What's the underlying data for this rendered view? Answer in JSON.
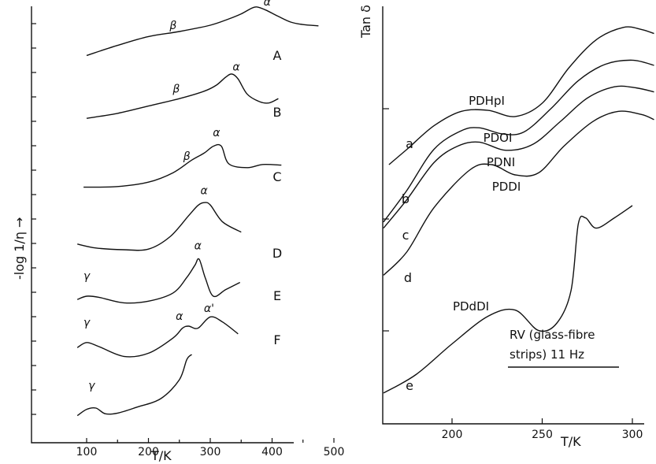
{
  "chart_data": [
    {
      "type": "line",
      "panel": "left",
      "xlabel": "T/K",
      "ylabel": "-log 1/η →",
      "xticks": [
        100,
        200,
        300,
        400,
        500
      ],
      "xlim": [
        80,
        530
      ],
      "series": [
        {
          "name": "A",
          "points": [
            [
              100,
              0.78
            ],
            [
              150,
              0.62
            ],
            [
              200,
              0.48
            ],
            [
              250,
              0.4
            ],
            [
              300,
              0.3
            ],
            [
              330,
              0.2
            ],
            [
              350,
              0.12
            ],
            [
              365,
              0.04
            ],
            [
              375,
              0.01
            ],
            [
              390,
              0.06
            ],
            [
              410,
              0.16
            ],
            [
              430,
              0.25
            ],
            [
              450,
              0.29
            ],
            [
              475,
              0.31
            ]
          ],
          "peak_labels": [
            {
              "text": "β",
              "x": 240,
              "y": 0.36
            },
            {
              "text": "α",
              "x": 392,
              "y": -0.01
            }
          ]
        },
        {
          "name": "B",
          "points": [
            [
              100,
              0.72
            ],
            [
              150,
              0.64
            ],
            [
              200,
              0.52
            ],
            [
              250,
              0.4
            ],
            [
              290,
              0.28
            ],
            [
              310,
              0.18
            ],
            [
              325,
              0.05
            ],
            [
              335,
              0.0
            ],
            [
              345,
              0.08
            ],
            [
              360,
              0.33
            ],
            [
              380,
              0.45
            ],
            [
              395,
              0.47
            ],
            [
              410,
              0.4
            ]
          ],
          "peak_labels": [
            {
              "text": "β",
              "x": 245,
              "y": 0.3
            },
            {
              "text": "α",
              "x": 342,
              "y": -0.06
            }
          ]
        },
        {
          "name": "C",
          "points": [
            [
              95,
              0.87
            ],
            [
              150,
              0.86
            ],
            [
              200,
              0.79
            ],
            [
              240,
              0.64
            ],
            [
              270,
              0.44
            ],
            [
              290,
              0.33
            ],
            [
              305,
              0.22
            ],
            [
              318,
              0.22
            ],
            [
              330,
              0.5
            ],
            [
              360,
              0.56
            ],
            [
              385,
              0.51
            ],
            [
              415,
              0.52
            ]
          ],
          "peak_labels": [
            {
              "text": "β",
              "x": 262,
              "y": 0.44
            },
            {
              "text": "α",
              "x": 310,
              "y": 0.06
            }
          ]
        },
        {
          "name": "D",
          "points": [
            [
              85,
              0.83
            ],
            [
              115,
              0.9
            ],
            [
              160,
              0.93
            ],
            [
              200,
              0.92
            ],
            [
              235,
              0.7
            ],
            [
              265,
              0.33
            ],
            [
              280,
              0.15
            ],
            [
              290,
              0.1
            ],
            [
              300,
              0.14
            ],
            [
              320,
              0.44
            ],
            [
              350,
              0.62
            ]
          ],
          "peak_labels": [
            {
              "text": "α",
              "x": 290,
              "y": -0.05
            }
          ]
        },
        {
          "name": "E",
          "points": [
            [
              85,
              0.86
            ],
            [
              100,
              0.8
            ],
            [
              120,
              0.82
            ],
            [
              160,
              0.92
            ],
            [
              200,
              0.89
            ],
            [
              240,
              0.74
            ],
            [
              262,
              0.46
            ],
            [
              275,
              0.24
            ],
            [
              282,
              0.13
            ],
            [
              292,
              0.47
            ],
            [
              305,
              0.8
            ],
            [
              325,
              0.68
            ],
            [
              348,
              0.55
            ]
          ],
          "peak_labels": [
            {
              "text": "γ",
              "x": 100,
              "y": 0.5
            },
            {
              "text": "α",
              "x": 280,
              "y": -0.05
            }
          ]
        },
        {
          "name": "F",
          "points": [
            [
              85,
              0.82
            ],
            [
              100,
              0.72
            ],
            [
              120,
              0.8
            ],
            [
              160,
              0.99
            ],
            [
              200,
              0.93
            ],
            [
              240,
              0.63
            ],
            [
              255,
              0.44
            ],
            [
              265,
              0.4
            ],
            [
              280,
              0.44
            ],
            [
              300,
              0.22
            ],
            [
              320,
              0.32
            ],
            [
              345,
              0.55
            ]
          ],
          "peak_labels": [
            {
              "text": "γ",
              "x": 100,
              "y": 0.4
            },
            {
              "text": "α",
              "x": 250,
              "y": 0.28
            },
            {
              "text": "α'",
              "x": 298,
              "y": 0.12
            }
          ]
        },
        {
          "name": "",
          "points": [
            [
              85,
              0.97
            ],
            [
              100,
              0.87
            ],
            [
              115,
              0.85
            ],
            [
              130,
              0.94
            ],
            [
              150,
              0.93
            ],
            [
              180,
              0.84
            ],
            [
              220,
              0.7
            ],
            [
              250,
              0.4
            ],
            [
              262,
              0.08
            ],
            [
              270,
              0.0
            ]
          ],
          "peak_labels": [
            {
              "text": "γ",
              "x": 108,
              "y": 0.55
            }
          ]
        }
      ]
    },
    {
      "type": "line",
      "panel": "right",
      "xlabel": "T/K",
      "ylabel": "Tan δ",
      "xticks": [
        200,
        250,
        300
      ],
      "xlim": [
        160,
        312
      ],
      "series": [
        {
          "name": "PDHpI",
          "curve_label": "a",
          "points": [
            [
              165,
              0.8
            ],
            [
              175,
              0.65
            ],
            [
              190,
              0.42
            ],
            [
              205,
              0.28
            ],
            [
              220,
              0.27
            ],
            [
              235,
              0.33
            ],
            [
              250,
              0.2
            ],
            [
              265,
              -0.15
            ],
            [
              280,
              -0.42
            ],
            [
              295,
              -0.54
            ],
            [
              305,
              -0.52
            ],
            [
              312,
              -0.48
            ]
          ]
        },
        {
          "name": "PDOI",
          "curve_label": "b",
          "points": [
            [
              162,
              1.36
            ],
            [
              175,
              1.05
            ],
            [
              190,
              0.65
            ],
            [
              205,
              0.47
            ],
            [
              215,
              0.44
            ],
            [
              228,
              0.5
            ],
            [
              240,
              0.48
            ],
            [
              255,
              0.25
            ],
            [
              270,
              -0.02
            ],
            [
              285,
              -0.18
            ],
            [
              300,
              -0.22
            ],
            [
              312,
              -0.17
            ]
          ]
        },
        {
          "name": "PDNI",
          "curve_label": "c",
          "points": [
            [
              162,
              1.42
            ],
            [
              175,
              1.14
            ],
            [
              190,
              0.78
            ],
            [
              203,
              0.62
            ],
            [
              215,
              0.58
            ],
            [
              230,
              0.66
            ],
            [
              245,
              0.6
            ],
            [
              260,
              0.38
            ],
            [
              275,
              0.15
            ],
            [
              290,
              0.04
            ],
            [
              302,
              0.05
            ],
            [
              312,
              0.09
            ]
          ]
        },
        {
          "name": "PDDI",
          "curve_label": "d",
          "points": [
            [
              162,
              1.88
            ],
            [
              175,
              1.65
            ],
            [
              190,
              1.22
            ],
            [
              210,
              0.85
            ],
            [
              222,
              0.8
            ],
            [
              235,
              0.9
            ],
            [
              248,
              0.88
            ],
            [
              262,
              0.62
            ],
            [
              278,
              0.38
            ],
            [
              292,
              0.28
            ],
            [
              305,
              0.31
            ],
            [
              312,
              0.36
            ]
          ]
        },
        {
          "name": "PDdDI",
          "curve_label": "e",
          "points": [
            [
              162,
              3.03
            ],
            [
              180,
              2.85
            ],
            [
              200,
              2.55
            ],
            [
              220,
              2.28
            ],
            [
              235,
              2.22
            ],
            [
              248,
              2.42
            ],
            [
              258,
              2.35
            ],
            [
              266,
              2.03
            ],
            [
              270,
              1.38
            ],
            [
              274,
              1.32
            ],
            [
              280,
              1.42
            ],
            [
              290,
              1.32
            ],
            [
              300,
              1.2
            ]
          ]
        }
      ],
      "annotation": "RV (glass-fibre strips) 11 Hz"
    }
  ]
}
